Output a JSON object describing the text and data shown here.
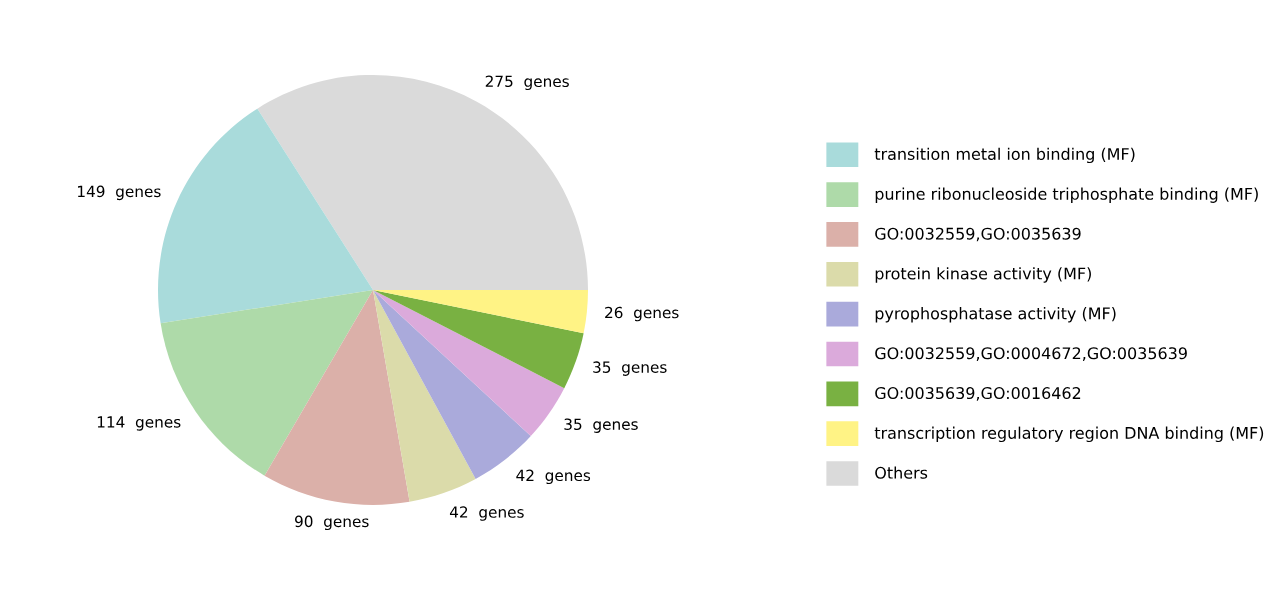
{
  "chart_data": {
    "type": "pie",
    "categories": [
      "transition metal ion binding (MF)",
      "purine ribonucleoside triphosphate binding (MF)",
      "GO:0032559,GO:0035639",
      "protein kinase activity (MF)",
      "pyrophosphatase activity (MF)",
      "GO:0032559,GO:0004672,GO:0035639",
      "GO:0035639,GO:0016462",
      "transcription regulatory region DNA binding (MF)",
      "Others"
    ],
    "values": [
      149,
      114,
      90,
      42,
      42,
      35,
      35,
      26,
      275
    ],
    "colors": [
      "#a9dbdb",
      "#aedaa9",
      "#dbb0a9",
      "#dbdbaa",
      "#aaaadb",
      "#dbaadb",
      "#79b142",
      "#fff385",
      "#dadada"
    ],
    "value_labels": [
      "149  genes",
      "114  genes",
      "90  genes",
      "42  genes",
      "42  genes",
      "35  genes",
      "35  genes",
      "26  genes",
      "275  genes"
    ],
    "legend": "right"
  }
}
